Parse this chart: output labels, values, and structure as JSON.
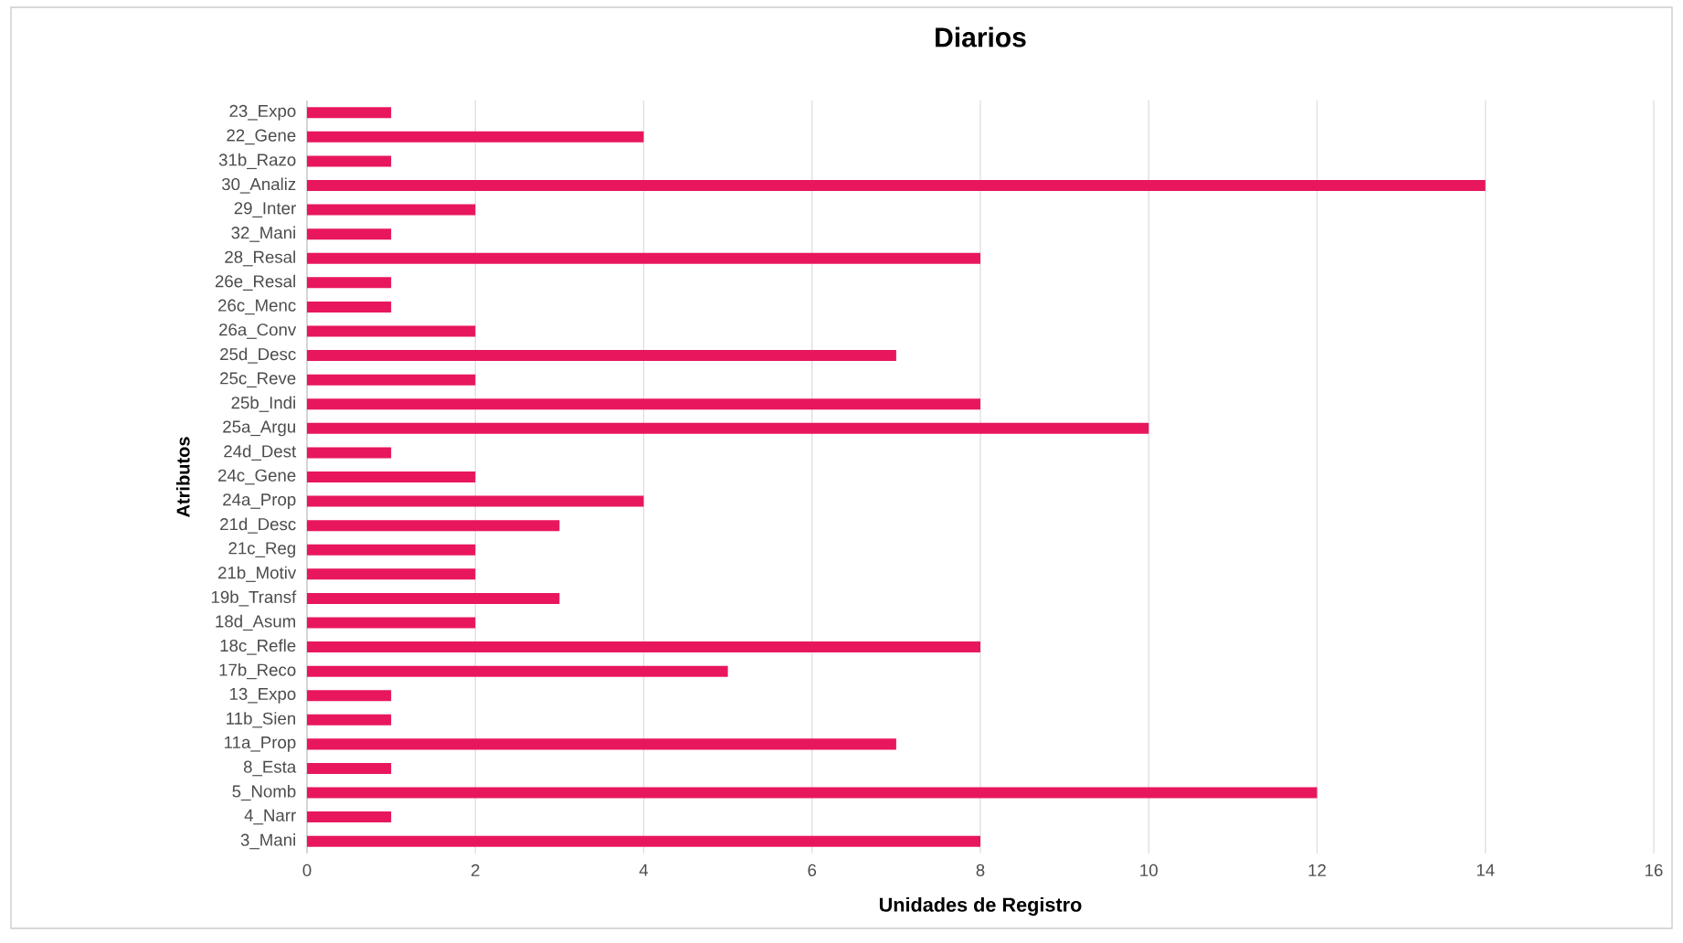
{
  "chart_data": {
    "type": "bar",
    "orientation": "horizontal",
    "title": "Diarios",
    "xlabel": "Unidades de Registro",
    "ylabel": "Atributos",
    "categories": [
      "23_Expo",
      "22_Gene",
      "31b_Razo",
      "30_Analiz",
      "29_Inter",
      "32_Mani",
      "28_Resal",
      "26e_Resal",
      "26c_Menc",
      "26a_Conv",
      "25d_Desc",
      "25c_Reve",
      "25b_Indi",
      "25a_Argu",
      "24d_Dest",
      "24c_Gene",
      "24a_Prop",
      "21d_Desc",
      "21c_Reg",
      "21b_Motiv",
      "19b_Transf",
      "18d_Asum",
      "18c_Refle",
      "17b_Reco",
      "13_Expo",
      "11b_Sien",
      "11a_Prop",
      "8_Esta",
      "5_Nomb",
      "4_Narr",
      "3_Mani"
    ],
    "values": [
      1,
      4,
      1,
      14,
      2,
      1,
      8,
      1,
      1,
      2,
      7,
      2,
      8,
      10,
      1,
      2,
      4,
      3,
      2,
      2,
      3,
      2,
      8,
      5,
      1,
      1,
      7,
      1,
      12,
      1,
      8
    ],
    "color": "#e8175d",
    "xlim": [
      0,
      16
    ],
    "xticks": [
      0,
      2,
      4,
      6,
      8,
      10,
      12,
      14,
      16
    ],
    "grid": "x"
  }
}
